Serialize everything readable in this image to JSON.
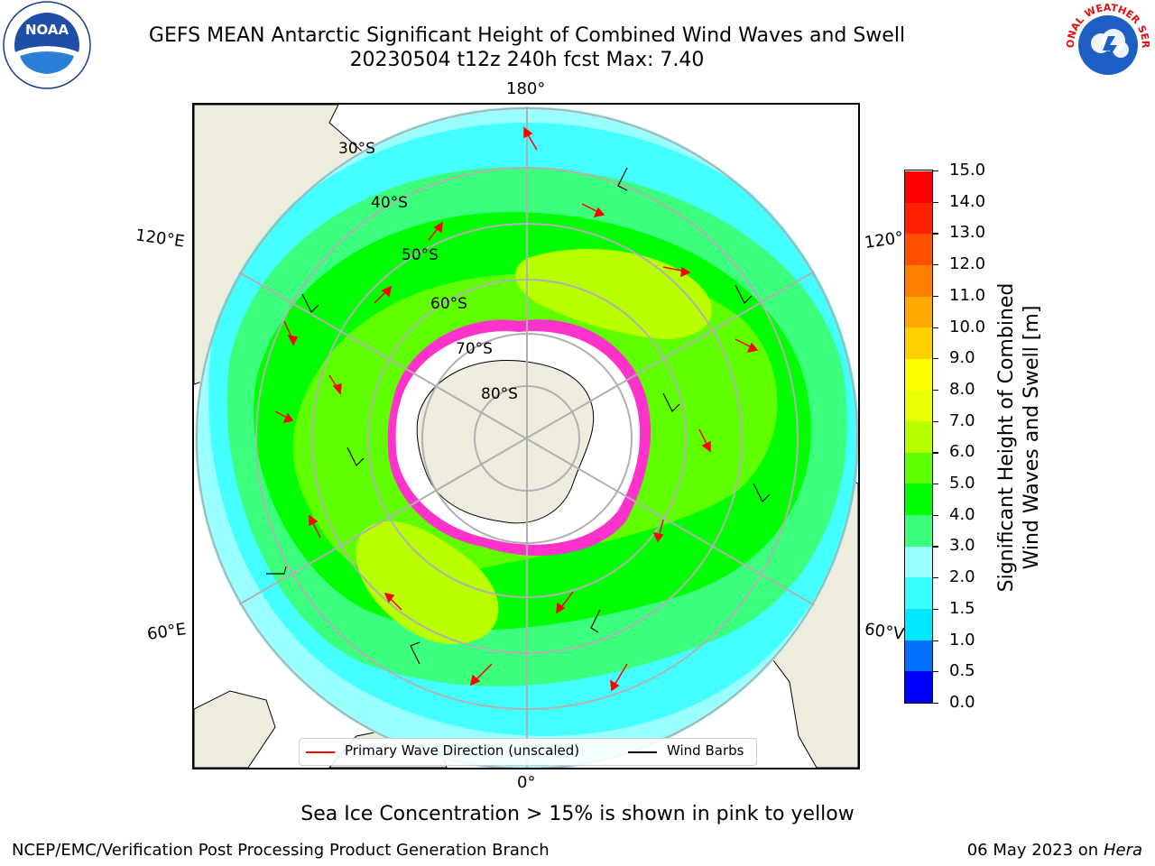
{
  "title": {
    "line1": "GEFS MEAN Antarctic Significant Height of Combined Wind Waves and Swell",
    "line2": "20230504 t12z 240h fcst   Max: 7.40"
  },
  "map": {
    "projection": "south-polar-stereographic",
    "longitude_labels": {
      "top": "180°",
      "bottom": "0°",
      "upper_left": "120°E",
      "lower_left": "60°E",
      "upper_right": "120°",
      "lower_right": "60°V"
    },
    "latitude_labels": [
      "30°S",
      "40°S",
      "50°S",
      "60°S",
      "70°S",
      "80°S"
    ],
    "field": "Significant Height of Combined Wind Waves and Swell",
    "max_value": 7.4,
    "colors": {
      "land": "#eeecdd",
      "ice_sheet": "#ffffff",
      "sea_ice": "#ff33cc",
      "grid": "#b0b0b0",
      "wave_arrow": "#ff0000",
      "wind_barb": "#000000"
    }
  },
  "colorbar": {
    "title_line1": "Significant Height of Combined",
    "title_line2": "Wind Waves and Swell [m]",
    "ticks": [
      "15.0",
      "14.0",
      "13.0",
      "12.0",
      "11.0",
      "10.0",
      "9.0",
      "8.0",
      "7.0",
      "6.0",
      "5.0",
      "4.0",
      "3.0",
      "2.0",
      "1.5",
      "1.0",
      "0.5",
      "0.0"
    ],
    "colors_bottom_to_top": [
      "#0000ff",
      "#0070ff",
      "#00e8ff",
      "#3affff",
      "#9affff",
      "#3cff7e",
      "#00ff00",
      "#60ff00",
      "#b8ff00",
      "#e8ff00",
      "#ffff00",
      "#ffd000",
      "#ffa800",
      "#ff8000",
      "#ff5000",
      "#ff2000",
      "#ff0000"
    ]
  },
  "legend": {
    "primary_wave_label": "Primary Wave Direction (unscaled)",
    "wind_barb_label": "Wind Barbs",
    "primary_wave_color": "#ff0000",
    "wind_barb_color": "#000000"
  },
  "note": "Sea Ice Concentration > 15% is shown in pink to yellow",
  "footer": {
    "left": "NCEP/EMC/Verification Post Processing Product Generation Branch",
    "right_date": "06 May 2023 on",
    "right_host": "Hera"
  },
  "logos": {
    "noaa_text": "NOAA",
    "nws_text": "NATIONAL WEATHER SERVICE"
  }
}
